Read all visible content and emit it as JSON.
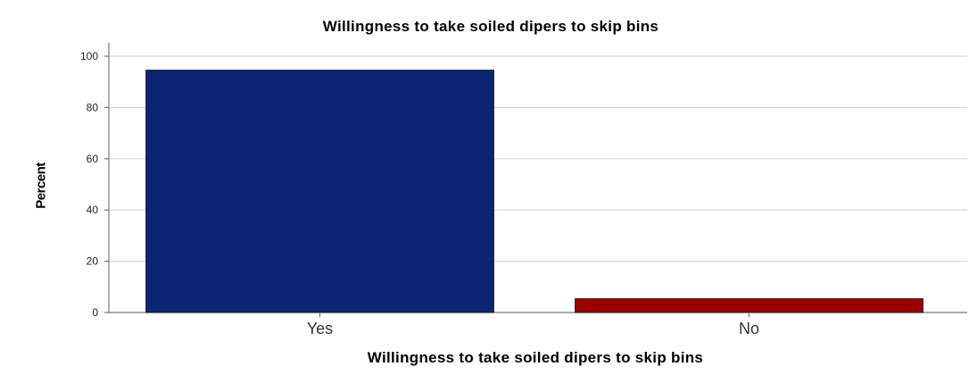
{
  "chart_data": {
    "type": "bar",
    "title": "Willingness to take soiled dipers to skip bins",
    "xlabel": "Willingness to take soiled dipers to skip bins",
    "ylabel": "Percent",
    "categories": [
      "Yes",
      "No"
    ],
    "values": [
      94.6,
      5.4
    ],
    "bar_colors": [
      "#0a2571",
      "#9a0000"
    ],
    "ylim": [
      0,
      100
    ],
    "yticks": [
      0,
      20,
      40,
      60,
      80,
      100
    ],
    "grid": true,
    "legend": "none"
  }
}
